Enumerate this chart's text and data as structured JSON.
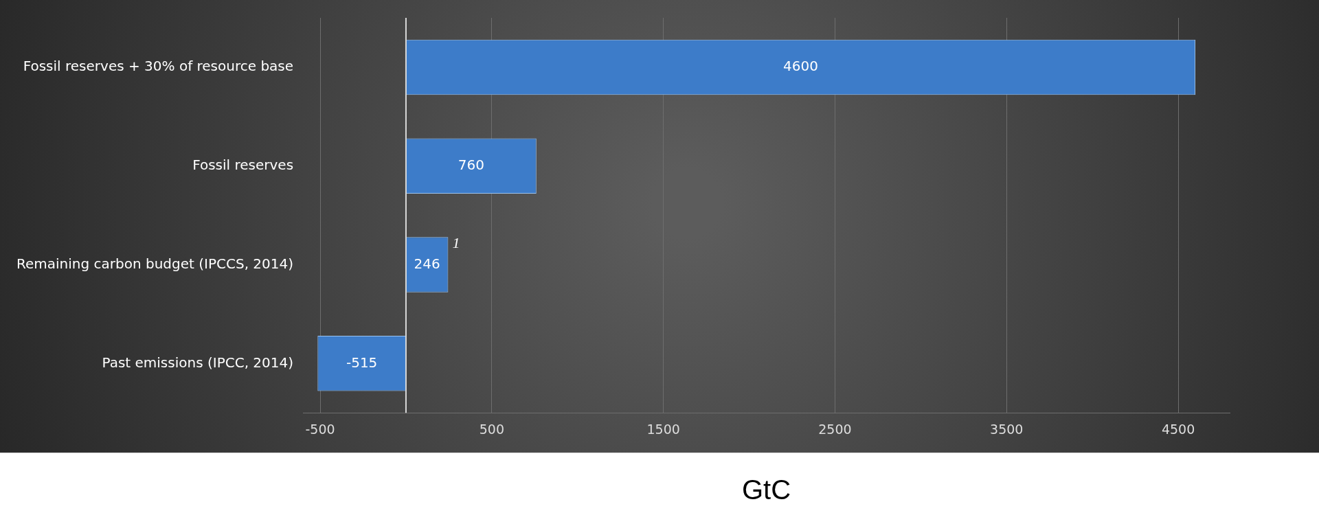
{
  "chart_data": {
    "type": "bar",
    "orientation": "horizontal",
    "xlabel": "GtC",
    "categories": [
      "Fossil reserves + 30% of resource base",
      "Fossil reserves",
      "Remaining carbon budget (IPCCS, 2014)",
      "Past emissions (IPCC, 2014)"
    ],
    "values": [
      4600,
      760,
      246,
      -515
    ],
    "color": "#3d7cc9",
    "data_labels": true,
    "xlim": [
      -600,
      4800
    ],
    "xticks": [
      -500,
      500,
      1500,
      2500,
      3500,
      4500
    ],
    "grid": "x",
    "ref_lines": [
      {
        "axis": "x",
        "value": 0,
        "color": "#d9d9d9"
      }
    ],
    "annotations": [
      {
        "text": "1",
        "x": 246,
        "y": "Remaining carbon budget (IPCCS, 2014)"
      }
    ],
    "legend": false
  }
}
